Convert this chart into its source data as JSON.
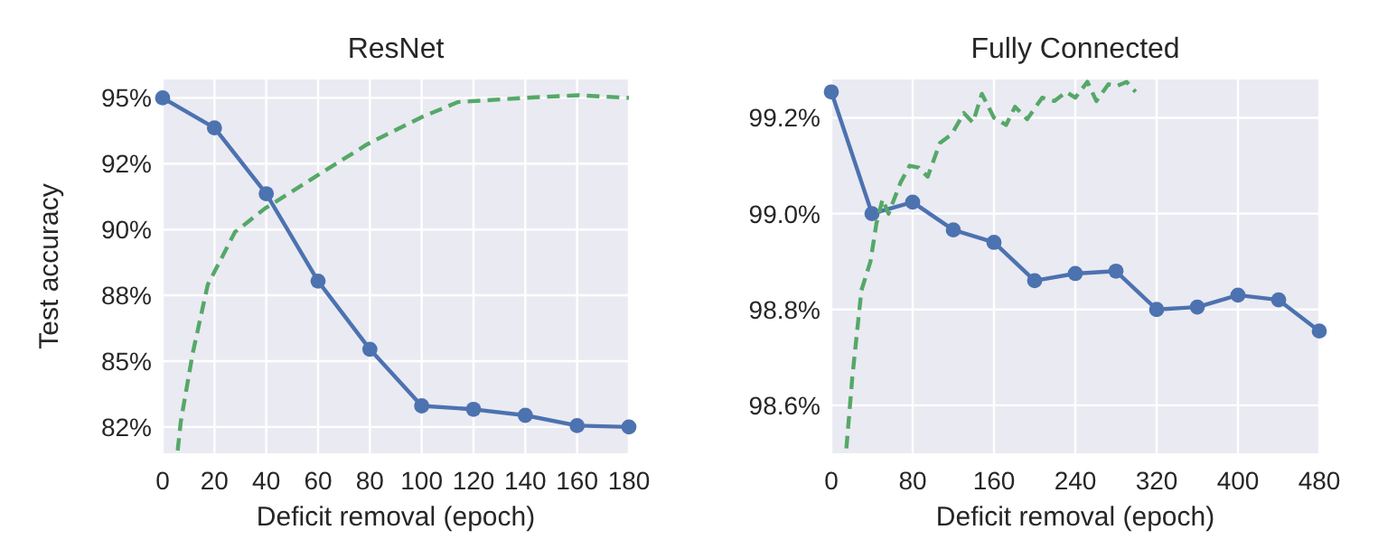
{
  "chart_data": [
    {
      "type": "line",
      "title": "ResNet",
      "xlabel": "Deficit removal (epoch)",
      "ylabel": "Test accuracy",
      "grid": true,
      "xlim": [
        0,
        180
      ],
      "xticks": [
        0,
        20,
        40,
        60,
        80,
        100,
        120,
        140,
        160,
        180
      ],
      "ylim": [
        81.5,
        95.7
      ],
      "yticks": [
        {
          "value": 82.5,
          "label": "82%"
        },
        {
          "value": 85,
          "label": "85%"
        },
        {
          "value": 87.5,
          "label": "88%"
        },
        {
          "value": 90,
          "label": "90%"
        },
        {
          "value": 92.5,
          "label": "92%"
        },
        {
          "value": 95,
          "label": "95%"
        }
      ],
      "series": [
        {
          "color": "#4c72b0",
          "marker": "circle",
          "line_style": "solid",
          "x": [
            0,
            20,
            40,
            60,
            80,
            100,
            120,
            140,
            160,
            180
          ],
          "values": [
            95.0,
            93.86,
            91.36,
            88.04,
            85.45,
            83.3,
            83.17,
            82.94,
            82.55,
            82.5
          ]
        },
        {
          "color": "#55a868",
          "marker": "none",
          "line_style": "dashed",
          "x": [
            5.8,
            7,
            11.6,
            17.4,
            27.9,
            39.5,
            60.5,
            79,
            100,
            114,
            139.5,
            160.5,
            180
          ],
          "values": [
            81.6,
            82.7,
            85.3,
            87.9,
            89.9,
            90.8,
            92.1,
            93.24,
            94.27,
            94.84,
            95.0,
            95.1,
            95.0
          ]
        }
      ]
    },
    {
      "type": "line",
      "title": "Fully Connected",
      "xlabel": "Deficit removal (epoch)",
      "grid": true,
      "xlim": [
        0,
        480
      ],
      "xticks": [
        0,
        80,
        160,
        240,
        320,
        400,
        480
      ],
      "ylim": [
        98.5,
        99.28
      ],
      "yticks": [
        {
          "value": 98.6,
          "label": "98.6%"
        },
        {
          "value": 98.8,
          "label": "98.8%"
        },
        {
          "value": 99.0,
          "label": "99.0%"
        },
        {
          "value": 99.2,
          "label": "99.2%"
        }
      ],
      "series": [
        {
          "color": "#4c72b0",
          "marker": "circle",
          "line_style": "solid",
          "x": [
            0,
            40,
            80,
            120,
            160,
            200,
            240,
            280,
            320,
            360,
            400,
            440,
            480
          ],
          "values": [
            99.254,
            99.0,
            99.024,
            98.966,
            98.94,
            98.86,
            98.875,
            98.88,
            98.8,
            98.805,
            98.83,
            98.82,
            98.755
          ]
        },
        {
          "color": "#55a868",
          "marker": "none",
          "line_style": "dashed",
          "x": [
            14.8,
            20.7,
            29.6,
            38.5,
            44.4,
            50.4,
            56.3,
            68.1,
            77,
            85.9,
            94.8,
            106.7,
            118.5,
            130.4,
            139.3,
            148.1,
            160,
            171.9,
            180.7,
            192.6,
            207.4,
            219.3,
            231.1,
            240,
            251.9,
            260.7,
            272.6,
            281.5,
            290.4,
            299.3
          ],
          "values": [
            98.51,
            98.66,
            98.84,
            98.9,
            98.98,
            99.03,
            99.0,
            99.065,
            99.1,
            99.096,
            99.077,
            99.147,
            99.166,
            99.21,
            99.19,
            99.25,
            99.2,
            99.185,
            99.223,
            99.197,
            99.242,
            99.235,
            99.254,
            99.242,
            99.275,
            99.235,
            99.27,
            99.267,
            99.275,
            99.254
          ]
        }
      ]
    }
  ]
}
